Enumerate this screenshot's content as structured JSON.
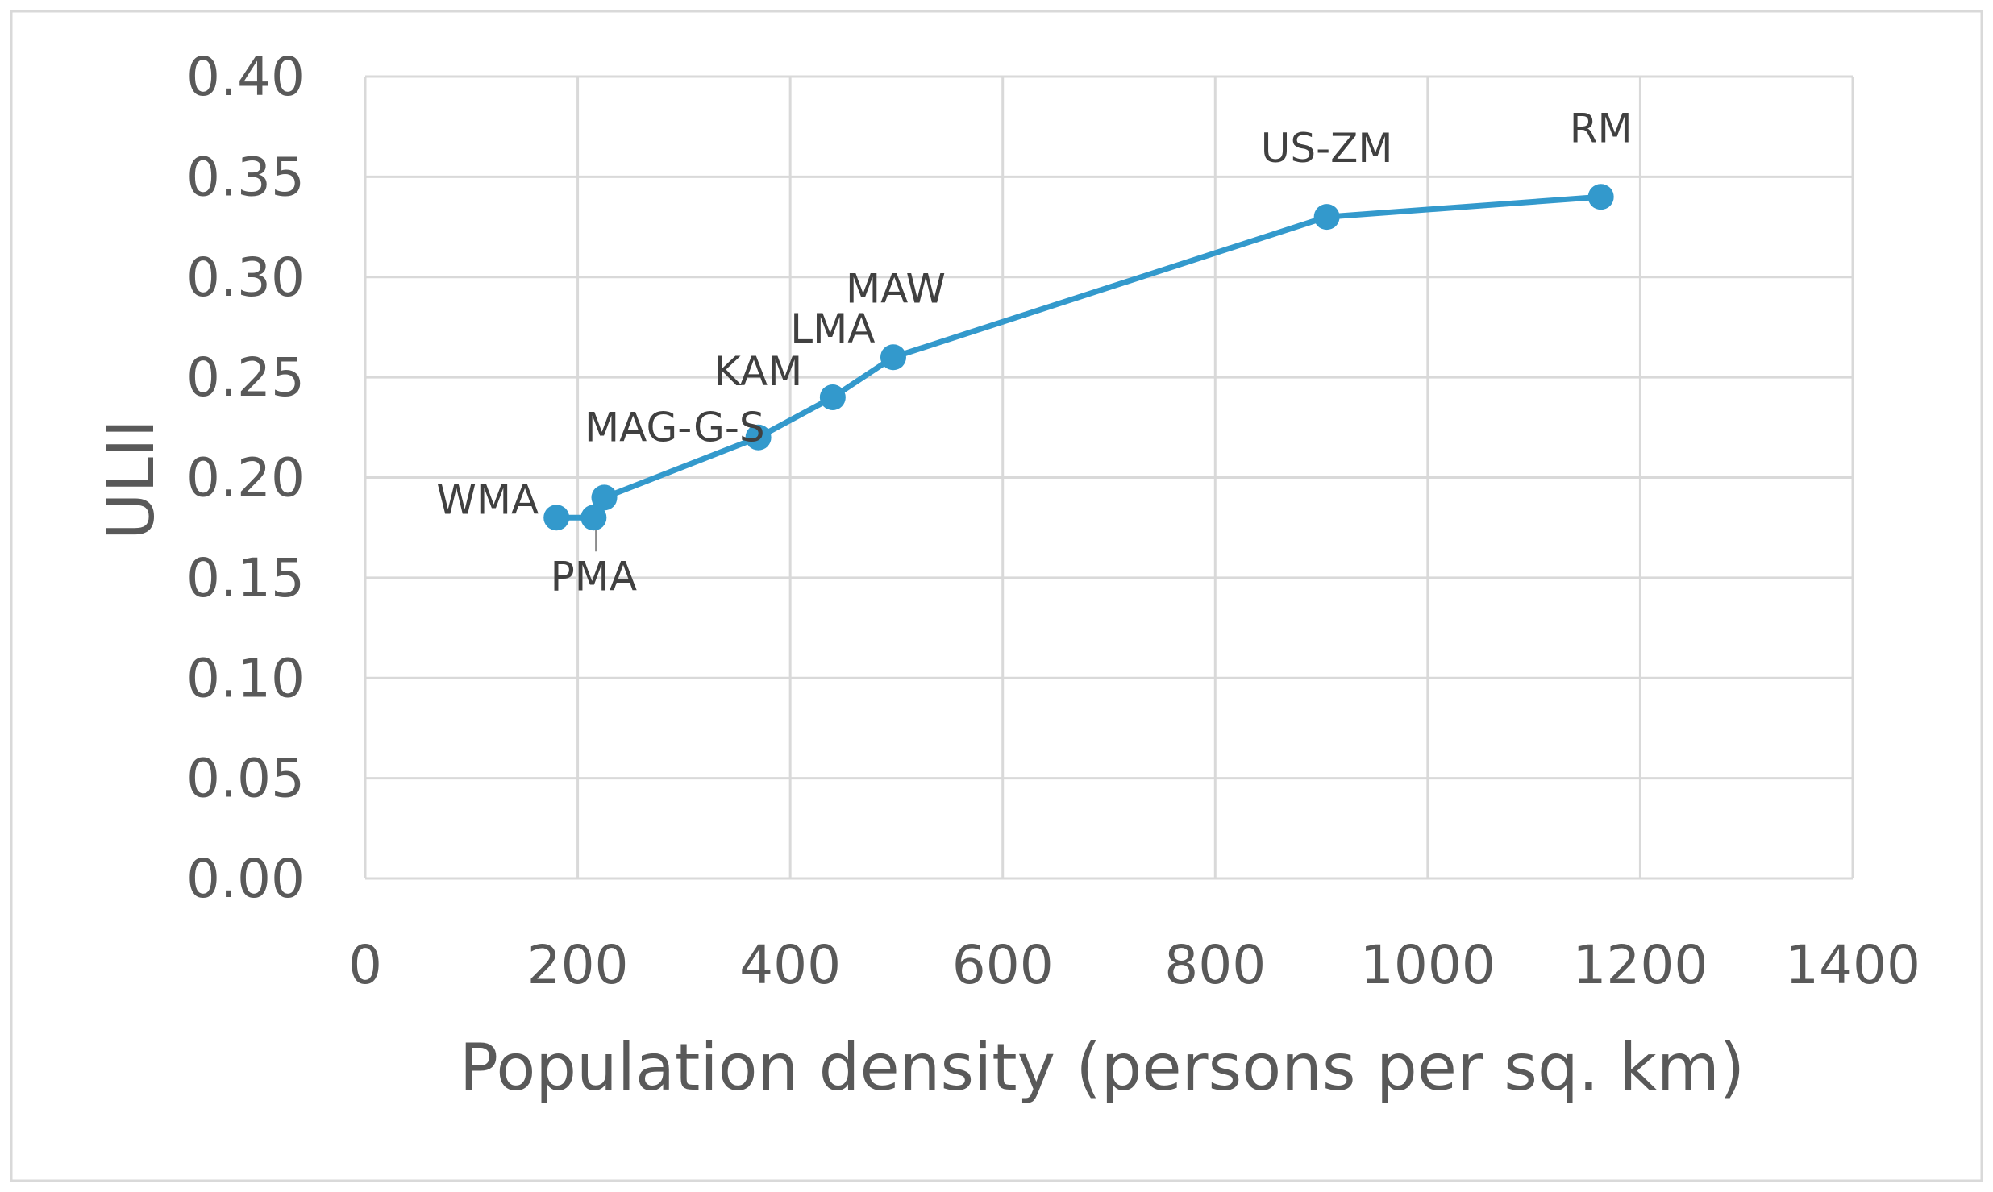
{
  "chart_data": {
    "type": "line",
    "title": "",
    "xlabel": "Population density (persons per sq. km)",
    "ylabel": "ULII",
    "xlim": [
      0,
      1400
    ],
    "ylim": [
      0,
      0.4
    ],
    "x_ticks": [
      "0",
      "200",
      "400",
      "600",
      "800",
      "1000",
      "1200",
      "1400"
    ],
    "y_ticks": [
      "0.00",
      "0.05",
      "0.10",
      "0.15",
      "0.20",
      "0.25",
      "0.30",
      "0.35",
      "0.40"
    ],
    "grid": true,
    "legend": "none",
    "color": "#3399cc",
    "series": [
      {
        "name": "ULII",
        "points": [
          {
            "label": "WMA",
            "x": 180,
            "y": 0.18
          },
          {
            "label": "PMA",
            "x": 215,
            "y": 0.18
          },
          {
            "label": "MAG-G-S",
            "x": 225,
            "y": 0.19
          },
          {
            "label": "KAM",
            "x": 370,
            "y": 0.22
          },
          {
            "label": "LMA",
            "x": 440,
            "y": 0.24
          },
          {
            "label": "MAW",
            "x": 497,
            "y": 0.26
          },
          {
            "label": "US-ZM",
            "x": 905,
            "y": 0.33
          },
          {
            "label": "RM",
            "x": 1163,
            "y": 0.34
          }
        ]
      }
    ]
  }
}
